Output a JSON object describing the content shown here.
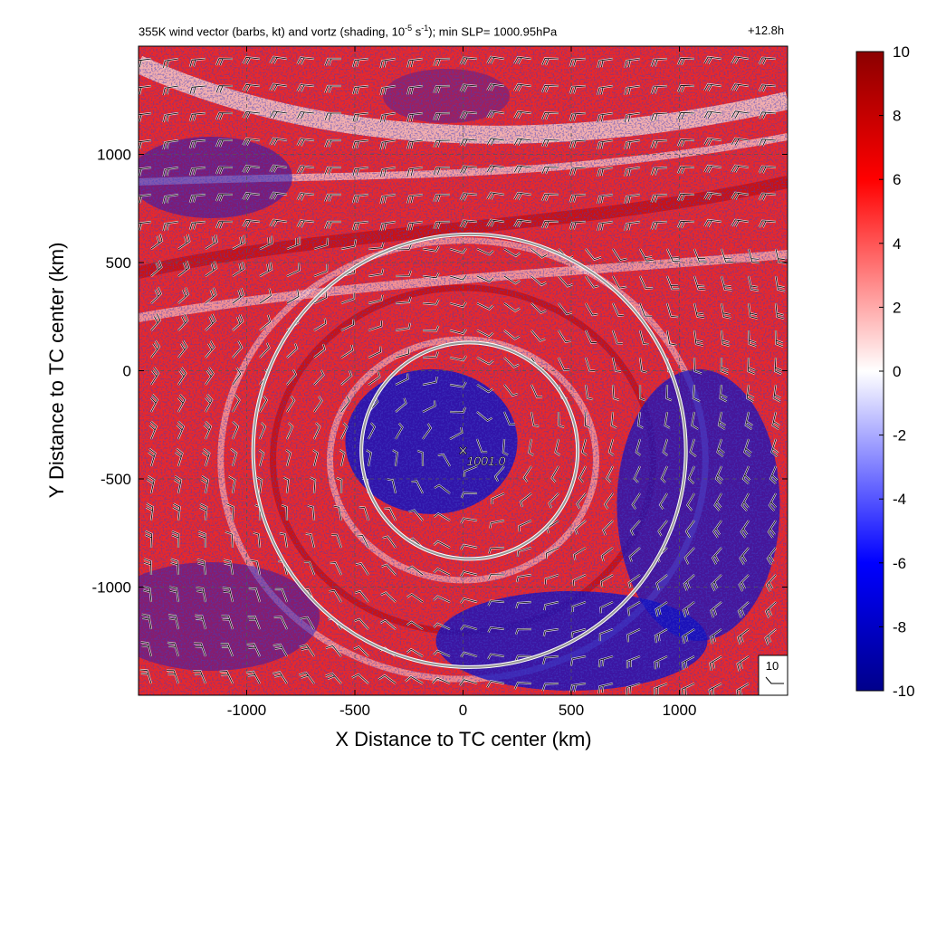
{
  "chart_data": {
    "type": "heatmap",
    "title": "355K wind vector (barbs, kt) and vortz (shading, 10",
    "title_exp1": "-5",
    "title_mid": " s",
    "title_exp2": "-1",
    "title_tail": "); min SLP= 1000.95hPa",
    "time_label": "+12.8h",
    "xlabel": "X Distance to TC center (km)",
    "ylabel": "Y Distance to TC center (km)",
    "xlim": [
      -1500,
      1500
    ],
    "ylim": [
      -1500,
      1500
    ],
    "xticks": [
      -1000,
      -500,
      0,
      500,
      1000
    ],
    "yticks": [
      -1000,
      -500,
      0,
      500,
      1000
    ],
    "grid": "dashed",
    "colorbar": {
      "range": [
        -10,
        10
      ],
      "ticks": [
        -10,
        -8,
        -6,
        -4,
        -2,
        0,
        2,
        4,
        6,
        8,
        10
      ],
      "colors": [
        "#00008b",
        "#0000ff",
        "#ffffff",
        "#ff0000",
        "#8b0000"
      ]
    },
    "tc_center": {
      "x": 0,
      "y": -370,
      "label": "1001.0"
    },
    "range_rings": [
      {
        "x": 30,
        "y": -370,
        "radius_km": 500
      },
      {
        "x": 30,
        "y": -370,
        "radius_km": 1000
      }
    ],
    "reference_barb": "10",
    "colors": {
      "positive": "#e00000",
      "negative": "#1010c0",
      "ring": "#999999"
    }
  }
}
